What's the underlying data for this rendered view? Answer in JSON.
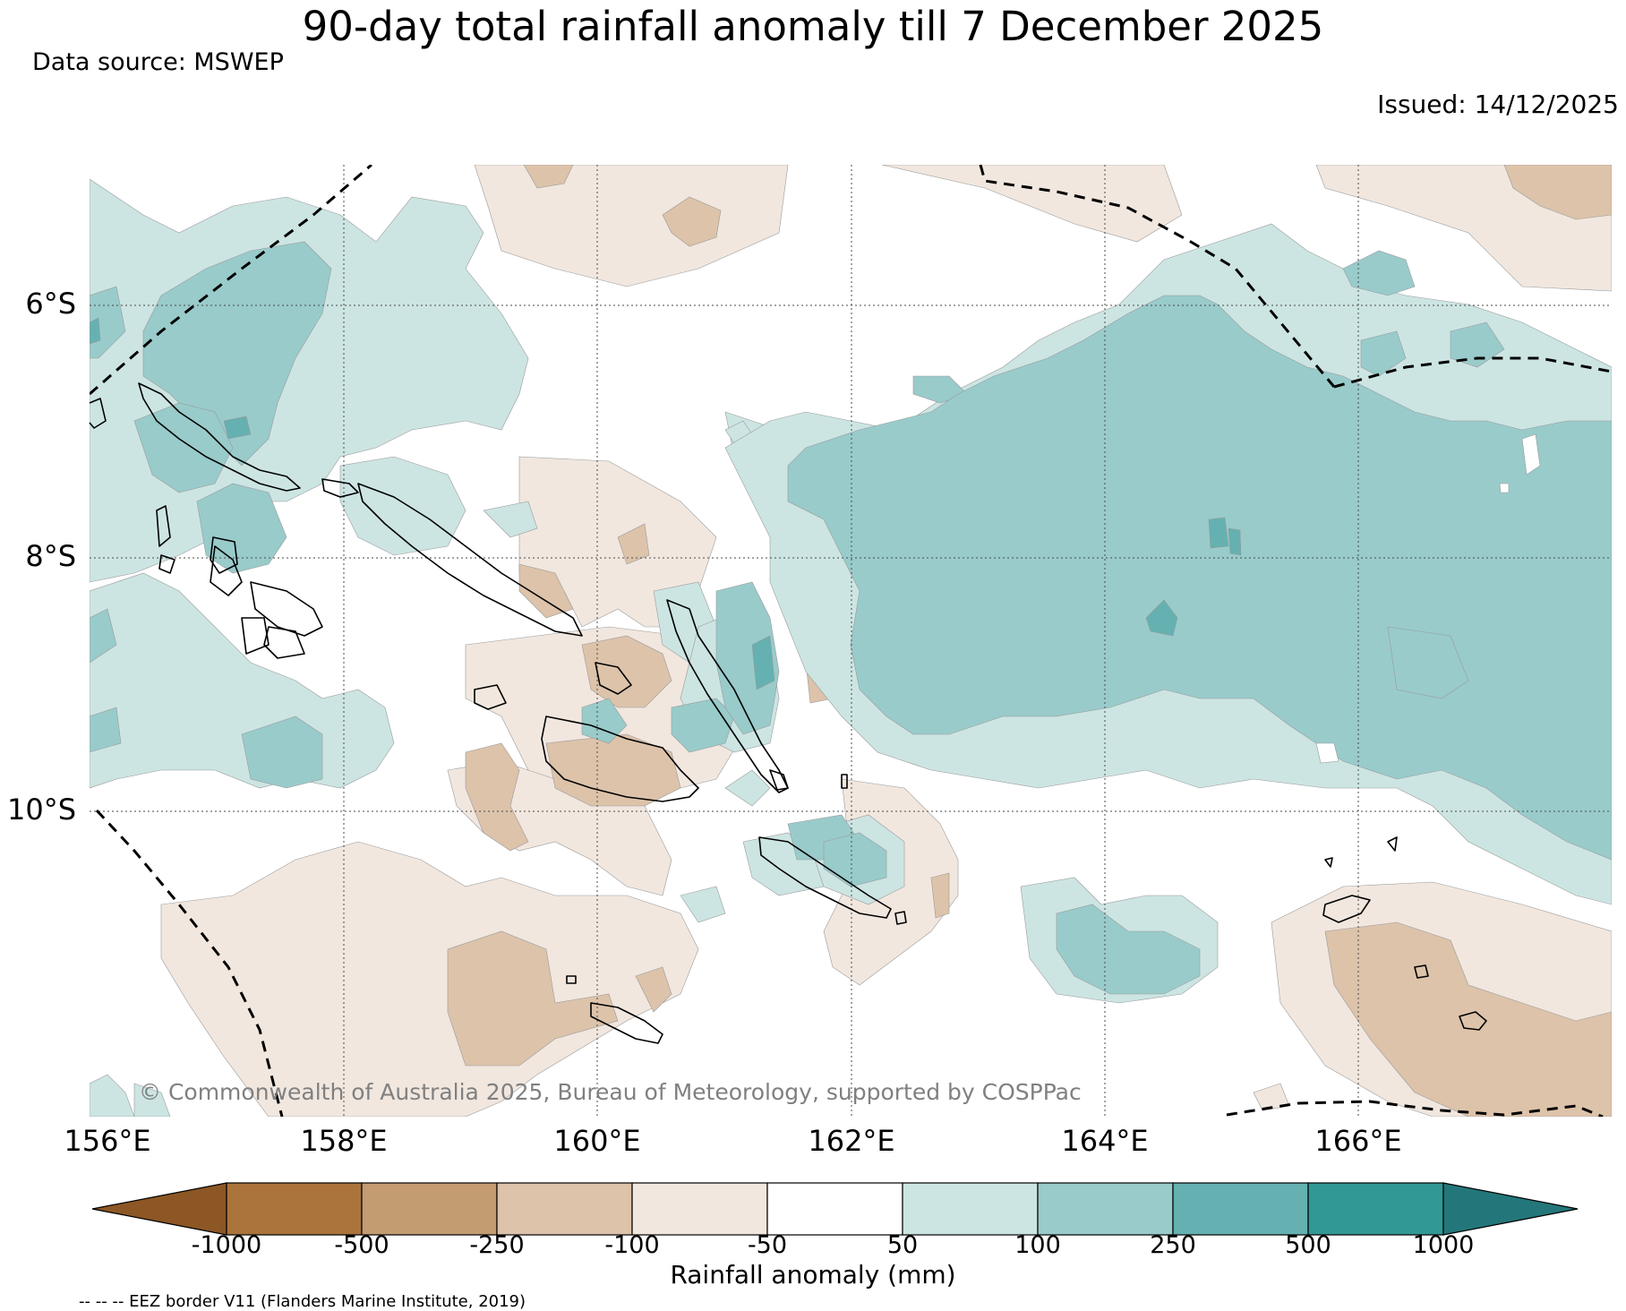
{
  "title": "90-day total rainfall anomaly till 7 December 2025",
  "data_source": "Data source: MSWEP",
  "issued": "Issued: 14/12/2025",
  "copyright": "© Commonwealth of Australia 2025, Bureau of Meteorology, supported by COSPPac",
  "eez_note": "-- -- -- EEZ border V11 (Flanders Marine Institute, 2019)",
  "latitude_labels": [
    "6°S",
    "8°S",
    "10°S"
  ],
  "longitude_labels": [
    "156°E",
    "158°E",
    "160°E",
    "162°E",
    "164°E",
    "166°E"
  ],
  "colorbar": {
    "title": "Rainfall anomaly (mm)",
    "ticks": [
      "-1000",
      "-500",
      "-250",
      "-100",
      "-50",
      "50",
      "100",
      "250",
      "500",
      "1000"
    ],
    "colors": [
      "#8c5724",
      "#ab743c",
      "#c49c72",
      "#dcc3aa",
      "#f1e7df",
      "#ffffff",
      "#cce5e3",
      "#99cbcb",
      "#65b1b1",
      "#319896",
      "#23777a"
    ]
  },
  "colors": {
    "dry_light": "#f1e7df",
    "dry_mid": "#dcc3aa",
    "wet_light": "#cce5e3",
    "wet_mid": "#99cbcb",
    "wet_strong": "#65b1b1"
  }
}
